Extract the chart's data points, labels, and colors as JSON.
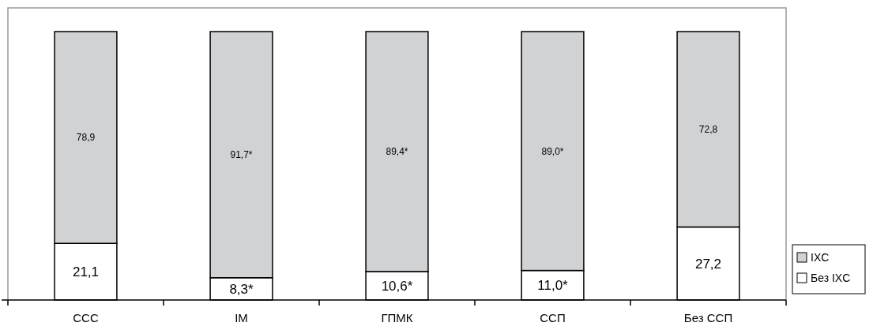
{
  "chart_data": {
    "type": "bar",
    "stacked": true,
    "categories": [
      "ССС",
      "IM",
      "ГПМК",
      "ССП",
      "Без ССП"
    ],
    "series": [
      {
        "name": "Без IXC",
        "color": "#ffffff",
        "values": [
          21.1,
          8.3,
          10.6,
          11.0,
          27.2
        ],
        "value_labels": [
          "21,1",
          "8,3*",
          "10,6*",
          "11,0*",
          "27,2"
        ]
      },
      {
        "name": "IXC",
        "color": "#d1d2d4",
        "values": [
          78.9,
          91.7,
          89.4,
          89.0,
          72.8
        ],
        "value_labels": [
          "78,9",
          "91,7*",
          "89,4*",
          "89,0*",
          "72,8"
        ]
      }
    ],
    "legend": "right"
  }
}
